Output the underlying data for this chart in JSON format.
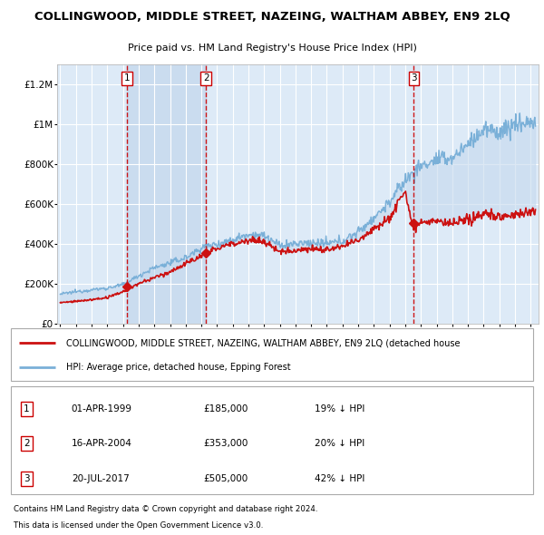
{
  "title": "COLLINGWOOD, MIDDLE STREET, NAZEING, WALTHAM ABBEY, EN9 2LQ",
  "subtitle": "Price paid vs. HM Land Registry's House Price Index (HPI)",
  "ylabel_ticks": [
    "£0",
    "£200K",
    "£400K",
    "£600K",
    "£800K",
    "£1M",
    "£1.2M"
  ],
  "ytick_values": [
    0,
    200000,
    400000,
    600000,
    800000,
    1000000,
    1200000
  ],
  "ylim": [
    0,
    1300000
  ],
  "xlim_start": 1994.8,
  "xlim_end": 2025.5,
  "hpi_color": "#7ab0d8",
  "hpi_fill_color": "#c5d9ee",
  "price_color": "#cc1111",
  "sale_marker_color": "#cc1111",
  "vline_color": "#cc0000",
  "background_color": "#ddeaf7",
  "grid_color": "#ffffff",
  "transactions": [
    {
      "label": "1",
      "date_num": 1999.25,
      "price": 185000,
      "text": "01-APR-1999",
      "amount": "£185,000",
      "pct": "19% ↓ HPI"
    },
    {
      "label": "2",
      "date_num": 2004.29,
      "price": 353000,
      "text": "16-APR-2004",
      "amount": "£353,000",
      "pct": "20% ↓ HPI"
    },
    {
      "label": "3",
      "date_num": 2017.55,
      "price": 505000,
      "text": "20-JUL-2017",
      "amount": "£505,000",
      "pct": "42% ↓ HPI"
    }
  ],
  "legend_line1": "COLLINGWOOD, MIDDLE STREET, NAZEING, WALTHAM ABBEY, EN9 2LQ (detached house",
  "legend_line2": "HPI: Average price, detached house, Epping Forest",
  "footer1": "Contains HM Land Registry data © Crown copyright and database right 2024.",
  "footer2": "This data is licensed under the Open Government Licence v3.0.",
  "hpi_anchors_years": [
    1995,
    1996,
    1997,
    1998,
    1999,
    2000,
    2001,
    2002,
    2003,
    2004,
    2005,
    2006,
    2007,
    2008,
    2009,
    2010,
    2011,
    2012,
    2013,
    2014,
    2015,
    2016,
    2017,
    2018,
    2019,
    2020,
    2021,
    2022,
    2023,
    2024,
    2025
  ],
  "hpi_anchors_vals": [
    148000,
    160000,
    170000,
    178000,
    195000,
    240000,
    280000,
    305000,
    330000,
    380000,
    400000,
    420000,
    450000,
    440000,
    390000,
    400000,
    405000,
    400000,
    415000,
    460000,
    530000,
    610000,
    720000,
    790000,
    820000,
    830000,
    900000,
    970000,
    960000,
    1000000,
    1010000
  ],
  "price_anchors_years": [
    1995,
    1996,
    1997,
    1998,
    1999,
    2000,
    2001,
    2002,
    2003,
    2004,
    2005,
    2006,
    2007,
    2008,
    2009,
    2010,
    2011,
    2012,
    2013,
    2014,
    2015,
    2016,
    2017.0,
    2017.4,
    2017.6,
    2018,
    2019,
    2020,
    2021,
    2022,
    2023,
    2024,
    2025
  ],
  "price_anchors_vals": [
    105000,
    112000,
    120000,
    130000,
    160000,
    200000,
    230000,
    260000,
    300000,
    340000,
    380000,
    400000,
    420000,
    410000,
    360000,
    370000,
    375000,
    370000,
    385000,
    420000,
    480000,
    530000,
    670000,
    505000,
    490000,
    510000,
    510000,
    500000,
    515000,
    555000,
    535000,
    545000,
    565000
  ]
}
